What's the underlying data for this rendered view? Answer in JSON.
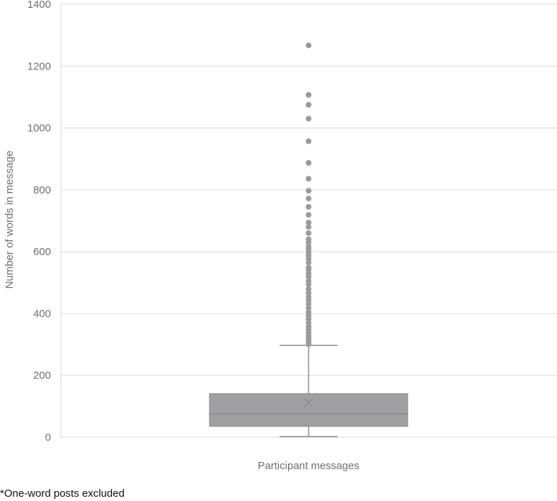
{
  "chart_data": {
    "type": "box",
    "title": "",
    "xlabel": "Participant messages",
    "ylabel": "Number of words in message",
    "ylim": [
      0,
      1400
    ],
    "yticks": [
      0,
      200,
      400,
      600,
      800,
      1000,
      1200,
      1400
    ],
    "grid": true,
    "legend": "none",
    "series": [
      {
        "category": "Participant messages",
        "whisker_low": 2,
        "q1": 35,
        "median": 75,
        "q3": 141,
        "whisker_high": 297,
        "mean": 111,
        "outliers": [
          301,
          309,
          318,
          327,
          337,
          347,
          358,
          370,
          382,
          393,
          405,
          418,
          431,
          443,
          454,
          466,
          479,
          494,
          505,
          518,
          529,
          541,
          549,
          565,
          577,
          587,
          597,
          608,
          617,
          630,
          640,
          660,
          680,
          694,
          719,
          745,
          772,
          797,
          836,
          887,
          957,
          1030,
          1075,
          1107,
          1267
        ]
      }
    ],
    "colors": {
      "box_fill": "#a0a0a2",
      "box_stroke": "#8c8c8e",
      "whisker": "#8c8c8e",
      "outlier": "#9b9b9d",
      "grid": "#d9d9d9",
      "median": "#8a8a8c",
      "mean_marker": "#8a8a8c"
    }
  },
  "footnote": "*One-word posts excluded"
}
